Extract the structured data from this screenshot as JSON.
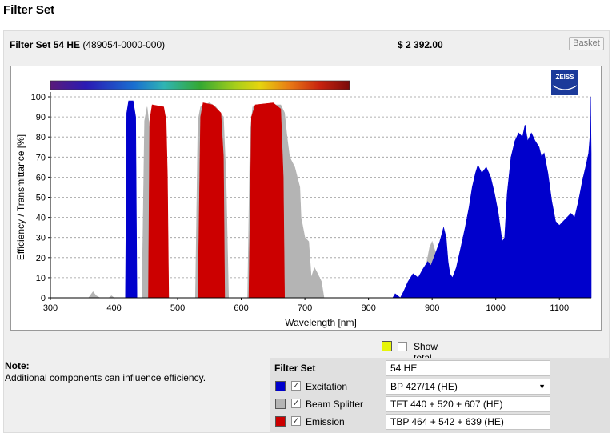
{
  "page_title": "Filter Set",
  "product": {
    "name": "Filter Set 54 HE",
    "code": "(489054-0000-000)",
    "price": "$ 2 392.00",
    "basket_label": "Basket"
  },
  "logo_text": "ZEISS",
  "note": {
    "title": "Note:",
    "text": "Additional components can influence efficiency."
  },
  "show_total": {
    "label": "Show total efficiency",
    "checked": false,
    "swatch_color": "#e6f50a"
  },
  "filter_set": {
    "label": "Filter Set",
    "value": "54 HE"
  },
  "components": [
    {
      "label": "Excitation",
      "value": "BP 427/14 (HE)",
      "color": "#0000cc",
      "checked": true,
      "dropdown": true
    },
    {
      "label": "Beam Splitter",
      "value": "TFT 440 + 520 + 607 (HE)",
      "color": "#b4b4b4",
      "checked": true,
      "dropdown": false
    },
    {
      "label": "Emission",
      "value": "TBP 464 + 542 + 639 (HE)",
      "color": "#cc0000",
      "checked": true,
      "dropdown": false
    }
  ],
  "chart_data": {
    "type": "area",
    "xlabel": "Wavelength [nm]",
    "ylabel": "Efficiency / Transmittance [%]",
    "xlim": [
      300,
      1150
    ],
    "ylim": [
      0,
      100
    ],
    "xticks": [
      300,
      400,
      500,
      600,
      700,
      800,
      900,
      1000,
      1100
    ],
    "yticks": [
      0,
      10,
      20,
      30,
      40,
      50,
      60,
      70,
      80,
      90,
      100
    ],
    "grid": true,
    "series": [
      {
        "name": "Beam Splitter",
        "color": "#b4b4b4",
        "points": [
          [
            360,
            0
          ],
          [
            367,
            3
          ],
          [
            372,
            1
          ],
          [
            378,
            0
          ],
          [
            392,
            0
          ],
          [
            396,
            1
          ],
          [
            400,
            0
          ],
          [
            444,
            0
          ],
          [
            448,
            88
          ],
          [
            452,
            95
          ],
          [
            485,
            0
          ],
          [
            528,
            0
          ],
          [
            532,
            88
          ],
          [
            536,
            95
          ],
          [
            550,
            97
          ],
          [
            560,
            95
          ],
          [
            572,
            90
          ],
          [
            576,
            60
          ],
          [
            580,
            0
          ],
          [
            610,
            0
          ],
          [
            614,
            82
          ],
          [
            618,
            95
          ],
          [
            650,
            96
          ],
          [
            662,
            96
          ],
          [
            668,
            92
          ],
          [
            672,
            80
          ],
          [
            676,
            70
          ],
          [
            684,
            65
          ],
          [
            692,
            55
          ],
          [
            694,
            40
          ],
          [
            700,
            30
          ],
          [
            706,
            28
          ],
          [
            710,
            10
          ],
          [
            715,
            15
          ],
          [
            720,
            12
          ],
          [
            726,
            8
          ],
          [
            730,
            0
          ],
          [
            860,
            0
          ],
          [
            870,
            5
          ],
          [
            880,
            8
          ],
          [
            890,
            15
          ],
          [
            896,
            25
          ],
          [
            900,
            28
          ],
          [
            906,
            22
          ],
          [
            912,
            18
          ],
          [
            918,
            12
          ],
          [
            925,
            0
          ]
        ]
      },
      {
        "name": "Emission",
        "color": "#cc0000",
        "points": [
          [
            454,
            0
          ],
          [
            456,
            88
          ],
          [
            460,
            96
          ],
          [
            478,
            95
          ],
          [
            482,
            88
          ],
          [
            484,
            60
          ],
          [
            486,
            0
          ],
          [
            532,
            0
          ],
          [
            536,
            90
          ],
          [
            540,
            97
          ],
          [
            555,
            96
          ],
          [
            568,
            92
          ],
          [
            572,
            70
          ],
          [
            574,
            0
          ],
          [
            612,
            0
          ],
          [
            616,
            90
          ],
          [
            622,
            96
          ],
          [
            650,
            97
          ],
          [
            662,
            94
          ],
          [
            666,
            60
          ],
          [
            668,
            0
          ]
        ]
      },
      {
        "name": "Excitation",
        "color": "#0000cc",
        "points": [
          [
            418,
            0
          ],
          [
            420,
            92
          ],
          [
            423,
            98
          ],
          [
            430,
            98
          ],
          [
            434,
            90
          ],
          [
            436,
            0
          ],
          [
            838,
            0
          ],
          [
            842,
            2
          ],
          [
            850,
            0
          ],
          [
            855,
            3
          ],
          [
            862,
            8
          ],
          [
            870,
            12
          ],
          [
            878,
            10
          ],
          [
            885,
            14
          ],
          [
            893,
            18
          ],
          [
            898,
            16
          ],
          [
            905,
            22
          ],
          [
            912,
            28
          ],
          [
            918,
            35
          ],
          [
            922,
            30
          ],
          [
            925,
            18
          ],
          [
            928,
            12
          ],
          [
            932,
            10
          ],
          [
            938,
            15
          ],
          [
            945,
            25
          ],
          [
            952,
            35
          ],
          [
            958,
            45
          ],
          [
            963,
            55
          ],
          [
            968,
            62
          ],
          [
            972,
            66
          ],
          [
            978,
            62
          ],
          [
            985,
            65
          ],
          [
            992,
            60
          ],
          [
            998,
            52
          ],
          [
            1004,
            42
          ],
          [
            1010,
            28
          ],
          [
            1014,
            30
          ],
          [
            1018,
            52
          ],
          [
            1024,
            70
          ],
          [
            1030,
            78
          ],
          [
            1036,
            82
          ],
          [
            1042,
            80
          ],
          [
            1046,
            86
          ],
          [
            1050,
            78
          ],
          [
            1056,
            82
          ],
          [
            1062,
            78
          ],
          [
            1068,
            75
          ],
          [
            1072,
            70
          ],
          [
            1076,
            72
          ],
          [
            1082,
            62
          ],
          [
            1088,
            48
          ],
          [
            1094,
            38
          ],
          [
            1100,
            36
          ],
          [
            1106,
            38
          ],
          [
            1112,
            40
          ],
          [
            1118,
            42
          ],
          [
            1124,
            40
          ],
          [
            1130,
            48
          ],
          [
            1136,
            58
          ],
          [
            1142,
            66
          ],
          [
            1146,
            72
          ],
          [
            1148,
            80
          ],
          [
            1149,
            100
          ],
          [
            1150,
            72
          ],
          [
            1150,
            0
          ]
        ]
      }
    ],
    "spectrum_bar": {
      "start": 300,
      "end": 770
    }
  }
}
